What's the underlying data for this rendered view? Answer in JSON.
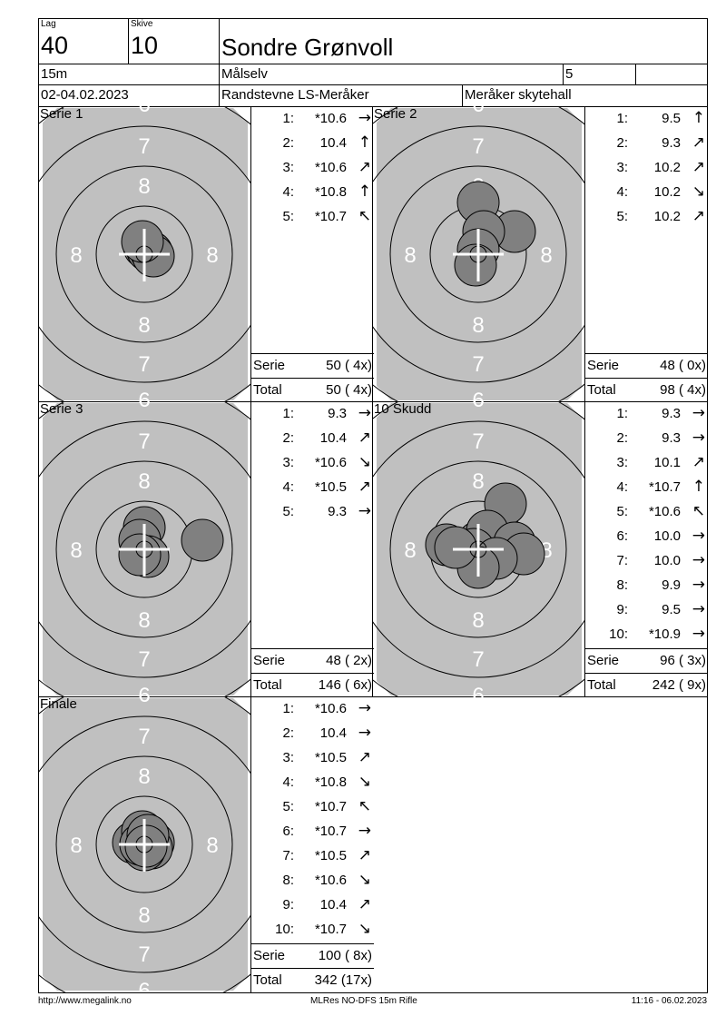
{
  "header": {
    "lag_label": "Lag",
    "lag": "40",
    "skive_label": "Skive",
    "skive": "10",
    "name": "Sondre Grønvoll",
    "distance": "15m",
    "club": "Målselv",
    "class": "5",
    "extra": "",
    "date": "02-04.02.2023",
    "event": "Randstevne LS-Meråker",
    "venue": "Meråker skytehall"
  },
  "panels": [
    {
      "title": "Serie 1",
      "shots": [
        {
          "n": "1:",
          "v": "*10.6",
          "dir": "right"
        },
        {
          "n": "2:",
          "v": "10.4",
          "dir": "up"
        },
        {
          "n": "3:",
          "v": "*10.6",
          "dir": "up-right"
        },
        {
          "n": "4:",
          "v": "*10.8",
          "dir": "up"
        },
        {
          "n": "5:",
          "v": "*10.7",
          "dir": "up-left"
        }
      ],
      "serie_label": "Serie",
      "serie": "50 ( 4x)",
      "total_label": "Total",
      "total": "50 ( 4x)"
    },
    {
      "title": "Serie 2",
      "shots": [
        {
          "n": "1:",
          "v": "9.5",
          "dir": "up"
        },
        {
          "n": "2:",
          "v": "9.3",
          "dir": "up-right"
        },
        {
          "n": "3:",
          "v": "10.2",
          "dir": "up-right"
        },
        {
          "n": "4:",
          "v": "10.2",
          "dir": "down-right"
        },
        {
          "n": "5:",
          "v": "10.2",
          "dir": "up-right"
        }
      ],
      "serie_label": "Serie",
      "serie": "48 ( 0x)",
      "total_label": "Total",
      "total": "98 ( 4x)"
    },
    {
      "title": "Serie 3",
      "shots": [
        {
          "n": "1:",
          "v": "9.3",
          "dir": "right"
        },
        {
          "n": "2:",
          "v": "10.4",
          "dir": "up-right"
        },
        {
          "n": "3:",
          "v": "*10.6",
          "dir": "down-right"
        },
        {
          "n": "4:",
          "v": "*10.5",
          "dir": "up-right"
        },
        {
          "n": "5:",
          "v": "9.3",
          "dir": "right"
        }
      ],
      "serie_label": "Serie",
      "serie": "48 ( 2x)",
      "total_label": "Total",
      "total": "146 ( 6x)"
    },
    {
      "title": "10 Skudd",
      "shots": [
        {
          "n": "1:",
          "v": "9.3",
          "dir": "right"
        },
        {
          "n": "2:",
          "v": "9.3",
          "dir": "right"
        },
        {
          "n": "3:",
          "v": "10.1",
          "dir": "up-right"
        },
        {
          "n": "4:",
          "v": "*10.7",
          "dir": "up"
        },
        {
          "n": "5:",
          "v": "*10.6",
          "dir": "up-left"
        },
        {
          "n": "6:",
          "v": "10.0",
          "dir": "right"
        },
        {
          "n": "7:",
          "v": "10.0",
          "dir": "right"
        },
        {
          "n": "8:",
          "v": "9.9",
          "dir": "right"
        },
        {
          "n": "9:",
          "v": "9.5",
          "dir": "right"
        },
        {
          "n": "10:",
          "v": "*10.9",
          "dir": "right"
        }
      ],
      "serie_label": "Serie",
      "serie": "96 ( 3x)",
      "total_label": "Total",
      "total": "242 ( 9x)"
    },
    {
      "title": "Finale",
      "shots": [
        {
          "n": "1:",
          "v": "*10.6",
          "dir": "right"
        },
        {
          "n": "2:",
          "v": "10.4",
          "dir": "right"
        },
        {
          "n": "3:",
          "v": "*10.5",
          "dir": "up-right"
        },
        {
          "n": "4:",
          "v": "*10.8",
          "dir": "down-right"
        },
        {
          "n": "5:",
          "v": "*10.7",
          "dir": "up-left"
        },
        {
          "n": "6:",
          "v": "*10.7",
          "dir": "right"
        },
        {
          "n": "7:",
          "v": "*10.5",
          "dir": "up-right"
        },
        {
          "n": "8:",
          "v": "*10.6",
          "dir": "down-right"
        },
        {
          "n": "9:",
          "v": "10.4",
          "dir": "up-right"
        },
        {
          "n": "10:",
          "v": "*10.7",
          "dir": "down-right"
        }
      ],
      "serie_label": "Serie",
      "serie": "100 ( 8x)",
      "total_label": "Total",
      "total": "342 (17x)"
    }
  ],
  "target_labels": {
    "r6": "6",
    "r7": "7",
    "r8": "8"
  },
  "footer": {
    "left": "http://www.megalink.no",
    "center": "MLRes NO-DFS 15m Rifle",
    "right": "11:16 - 06.02.2023"
  },
  "colors": {
    "target_gray": "#c0c0c0",
    "shot_gray": "#808080"
  }
}
